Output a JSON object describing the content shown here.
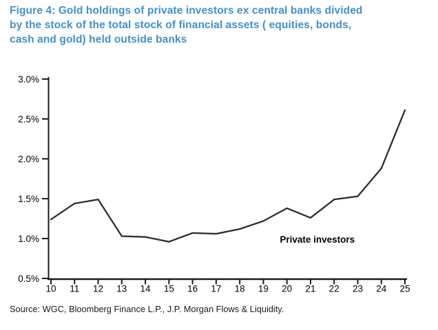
{
  "figure": {
    "title_lines": [
      "Figure 4: Gold holdings of private investors ex central banks divided",
      "by the stock of the total stock of financial assets ( equities, bonds,",
      "cash and gold) held outside banks"
    ],
    "source": "Source: WGC, Bloomberg Finance L.P., J.P. Morgan Flows & Liquidity."
  },
  "colors": {
    "title": "#4190d0",
    "line": "#2d2d2d",
    "axis": "#1a1a1a",
    "tick_text": "#000000",
    "background": "#ffffff"
  },
  "chart_data": {
    "type": "line",
    "title": "Figure 4: Gold holdings of private investors ex central banks divided by the stock of the total stock of financial assets ( equities, bonds, cash and gold) held outside banks",
    "xlabel": "",
    "ylabel": "",
    "x": [
      10,
      11,
      12,
      13,
      14,
      15,
      16,
      17,
      18,
      19,
      20,
      21,
      22,
      23,
      24,
      25
    ],
    "x_tick_labels": [
      "10",
      "11",
      "12",
      "13",
      "14",
      "15",
      "16",
      "17",
      "18",
      "19",
      "20",
      "21",
      "22",
      "23",
      "24",
      "25"
    ],
    "series": [
      {
        "name": "Private investors",
        "values": [
          1.24,
          1.44,
          1.49,
          1.03,
          1.02,
          0.96,
          1.07,
          1.06,
          1.12,
          1.22,
          1.38,
          1.26,
          1.49,
          1.53,
          1.88,
          2.61
        ]
      }
    ],
    "xlim": [
      10,
      25
    ],
    "ylim": [
      0.5,
      3.0
    ],
    "ytick_step": 0.5,
    "ytick_suffix": "%",
    "ytick_decimals": 1,
    "grid": false,
    "legend_position": "none",
    "annotation": {
      "text": "Private investors",
      "x": 19.7,
      "y": 0.95
    }
  }
}
